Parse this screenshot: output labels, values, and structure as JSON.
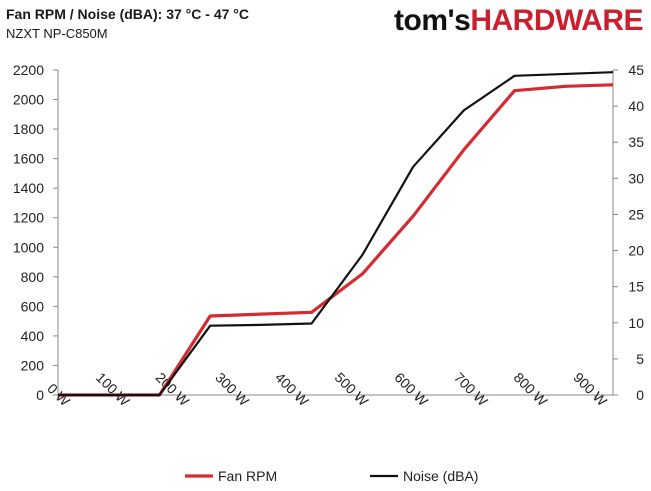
{
  "title": "Fan RPM / Noise (dBA): 37 °C - 47 °C",
  "subtitle": "NZXT NP-C850M",
  "brand": {
    "part1": "tom's",
    "part2": "HARDWARE"
  },
  "colors": {
    "fan": "#d42b32",
    "noise": "#111111",
    "axis": "#888888",
    "brand_accent": "#c8202f"
  },
  "chart_data": {
    "type": "line",
    "title": "Fan RPM / Noise (dBA): 37 °C - 47 °C",
    "subtitle": "NZXT NP-C850M",
    "x_ticks": [
      0,
      100,
      200,
      300,
      400,
      500,
      600,
      700,
      800,
      900
    ],
    "x_tick_labels": [
      "0 W",
      "100 W",
      "200 W",
      "300 W",
      "400 W",
      "500 W",
      "600 W",
      "700 W",
      "800 W",
      "900 W"
    ],
    "xlim": [
      0,
      930
    ],
    "y_left": {
      "lim": [
        0,
        2200
      ],
      "ticks": [
        0,
        200,
        400,
        600,
        800,
        1000,
        1200,
        1400,
        1600,
        1800,
        2000,
        2200
      ]
    },
    "y_right": {
      "lim": [
        0,
        45
      ],
      "ticks": [
        0,
        5,
        10,
        15,
        20,
        25,
        30,
        35,
        40,
        45
      ]
    },
    "grid": false,
    "legend_position": "bottom",
    "series": [
      {
        "name": "Fan RPM",
        "axis": "left",
        "color": "#d42b32",
        "x": [
          0,
          170,
          255,
          425,
          510,
          595,
          680,
          765,
          850,
          930
        ],
        "y": [
          0,
          0,
          535,
          560,
          820,
          1210,
          1660,
          2060,
          2090,
          2100
        ]
      },
      {
        "name": "Noise (dBA)",
        "axis": "right",
        "color": "#111111",
        "x": [
          0,
          170,
          255,
          340,
          425,
          510,
          595,
          680,
          765,
          930
        ],
        "y": [
          0,
          0,
          9.6,
          9.7,
          9.9,
          19.4,
          31.6,
          39.4,
          44.2,
          44.7
        ]
      }
    ]
  }
}
